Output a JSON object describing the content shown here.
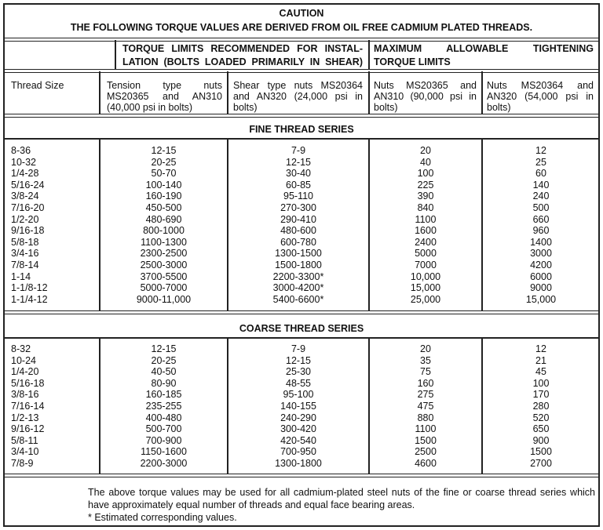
{
  "caution": {
    "title": "CAUTION",
    "text": "THE FOLLOWING TORQUE VALUES ARE DERIVED FROM OIL FREE CADMIUM PLATED THREADS."
  },
  "header": {
    "group_install_line1": "TORQUE LIMITS RECOMMENDED FOR INSTAL-",
    "group_install_line2": "LATION (BOLTS LOADED PRIMARILY IN SHEAR)",
    "group_max_line1": "MAXIMUM ALLOWABLE TIGHTENING",
    "group_max_line2": "TORQUE LIMITS"
  },
  "columns": [
    {
      "label": "Thread Size"
    },
    {
      "label": "Tension type nuts MS20365 and AN310 (40,000 psi in bolts)"
    },
    {
      "label": "Shear type nuts MS20364 and AN320 (24,000 psi in bolts)"
    },
    {
      "label": "Nuts MS20365 and AN310 (90,000 psi in bolts)"
    },
    {
      "label": "Nuts MS20364 and AN320 (54,000 psi in bolts)"
    }
  ],
  "fine": {
    "title": "FINE THREAD SERIES",
    "rows": [
      [
        "8-36",
        "12-15",
        "7-9",
        "20",
        "12"
      ],
      [
        "10-32",
        "20-25",
        "12-15",
        "40",
        "25"
      ],
      [
        "1/4-28",
        "50-70",
        "30-40",
        "100",
        "60"
      ],
      [
        "5/16-24",
        "100-140",
        "60-85",
        "225",
        "140"
      ],
      [
        "3/8-24",
        "160-190",
        "95-110",
        "390",
        "240"
      ],
      [
        "7/16-20",
        "450-500",
        "270-300",
        "840",
        "500"
      ],
      [
        "1/2-20",
        "480-690",
        "290-410",
        "1100",
        "660"
      ],
      [
        "9/16-18",
        "800-1000",
        "480-600",
        "1600",
        "960"
      ],
      [
        "5/8-18",
        "1100-1300",
        "600-780",
        "2400",
        "1400"
      ],
      [
        "3/4-16",
        "2300-2500",
        "1300-1500",
        "5000",
        "3000"
      ],
      [
        "7/8-14",
        "2500-3000",
        "1500-1800",
        "7000",
        "4200"
      ],
      [
        "1-14",
        "3700-5500",
        "2200-3300*",
        "10,000",
        "6000"
      ],
      [
        "1-1/8-12",
        "5000-7000",
        "3000-4200*",
        "15,000",
        "9000"
      ],
      [
        "1-1/4-12",
        "9000-11,000",
        "5400-6600*",
        "25,000",
        "15,000"
      ]
    ]
  },
  "coarse": {
    "title": "COARSE THREAD SERIES",
    "rows": [
      [
        "8-32",
        "12-15",
        "7-9",
        "20",
        "12"
      ],
      [
        "10-24",
        "20-25",
        "12-15",
        "35",
        "21"
      ],
      [
        "1/4-20",
        "40-50",
        "25-30",
        "75",
        "45"
      ],
      [
        "5/16-18",
        "80-90",
        "48-55",
        "160",
        "100"
      ],
      [
        "3/8-16",
        "160-185",
        "95-100",
        "275",
        "170"
      ],
      [
        "7/16-14",
        "235-255",
        "140-155",
        "475",
        "280"
      ],
      [
        "1/2-13",
        "400-480",
        "240-290",
        "880",
        "520"
      ],
      [
        "9/16-12",
        "500-700",
        "300-420",
        "1100",
        "650"
      ],
      [
        "5/8-11",
        "700-900",
        "420-540",
        "1500",
        "900"
      ],
      [
        "3/4-10",
        "1150-1600",
        "700-950",
        "2500",
        "1500"
      ],
      [
        "7/8-9",
        "2200-3000",
        "1300-1800",
        "4600",
        "2700"
      ]
    ]
  },
  "notes": {
    "paragraph": "The above torque values may be used for all cadmium-plated steel nuts of the fine or coarse thread series which have approximately equal number of threads and equal face bearing areas.",
    "footnote": "*  Estimated corresponding values."
  }
}
